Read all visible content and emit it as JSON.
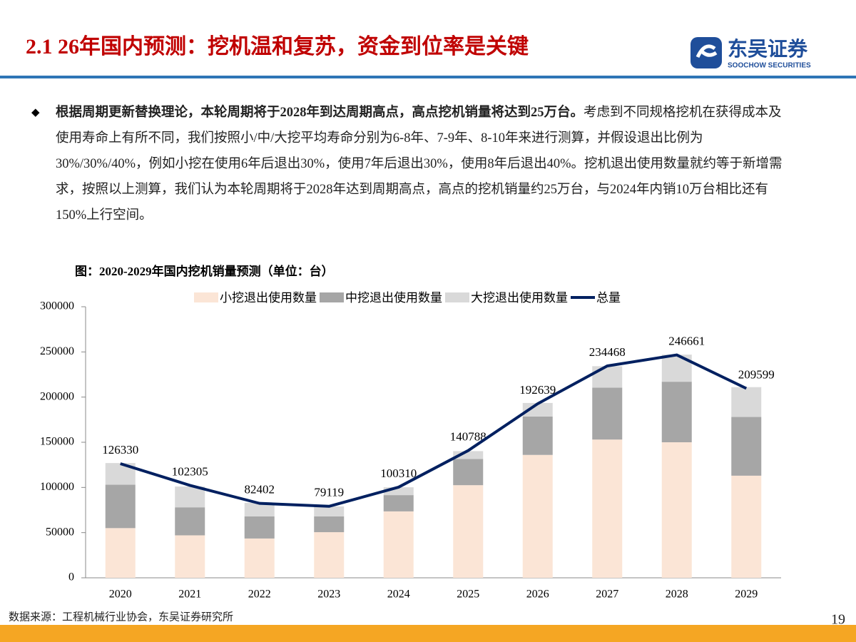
{
  "header": {
    "title": "2.1 26年国内预测：挖机温和复苏，资金到位率是关键",
    "logo_cn": "东吴证券",
    "logo_en": "SOOCHOW SECURITIES"
  },
  "body": {
    "bold": "根据周期更新替换理论，本轮周期将于2028年到达周期高点，高点挖机销量将达到25万台。",
    "text": "考虑到不同规格挖机在获得成本及使用寿命上有所不同，我们按照小/中/大挖平均寿命分别为6-8年、7-9年、8-10年来进行测算，并假设退出比例为30%/30%/40%，例如小挖在使用6年后退出30%，使用7年后退出30%，使用8年后退出40%。挖机退出使用数量就约等于新增需求，按照以上测算，我们认为本轮周期将于2028年达到周期高点，高点的挖机销量约25万台，与2024年内销10万台相比还有150%上行空间。"
  },
  "chart_data": {
    "type": "bar",
    "stacked": true,
    "title": "图：2020-2029年国内挖机销量预测（单位：台）",
    "categories": [
      "2020",
      "2021",
      "2022",
      "2023",
      "2024",
      "2025",
      "2026",
      "2027",
      "2028",
      "2029"
    ],
    "series": [
      {
        "name": "小挖退出使用数量",
        "color": "#fbe5d6",
        "type": "bar",
        "values": [
          55000,
          47000,
          43500,
          50500,
          73500,
          102500,
          136000,
          153000,
          150000,
          113000
        ]
      },
      {
        "name": "中挖退出使用数量",
        "color": "#a6a6a6",
        "type": "bar",
        "values": [
          48000,
          31000,
          24500,
          17500,
          18000,
          29000,
          42500,
          57500,
          67000,
          65000
        ]
      },
      {
        "name": "大挖退出使用数量",
        "color": "#d9d9d9",
        "type": "bar",
        "values": [
          24000,
          23000,
          15000,
          11000,
          8700,
          8700,
          15000,
          23700,
          30000,
          33000
        ]
      },
      {
        "name": "总量",
        "color": "#002060",
        "type": "line",
        "values": [
          126330,
          102305,
          82402,
          79119,
          100310,
          140788,
          192639,
          234468,
          246661,
          209599
        ]
      }
    ],
    "ylim": [
      0,
      300000
    ],
    "yticks": [
      0,
      50000,
      100000,
      150000,
      200000,
      250000,
      300000
    ],
    "grid": false,
    "legend": "top"
  },
  "footer": {
    "source": "数据来源：工程机械行业协会，东吴证券研究所",
    "page": "19"
  }
}
